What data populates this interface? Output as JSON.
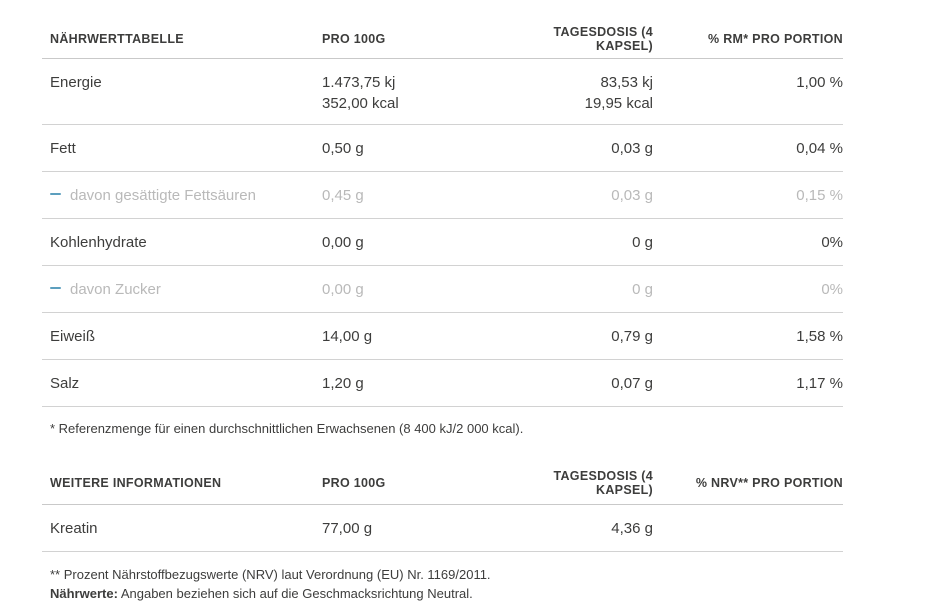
{
  "colors": {
    "text_dark": "#3d3d3c",
    "text_muted": "#b9b9b9",
    "dash_accent": "#5c9fbe",
    "divider": "#d2d2d2"
  },
  "nutrition_table": {
    "headers": {
      "col1": "NÄHRWERTTABELLE",
      "col2": "PRO 100G",
      "col3": "TAGESDOSIS (4 KAPSEL)",
      "col4": "% RM* PRO PORTION"
    },
    "rows": [
      {
        "label": "Energie",
        "per_100g": [
          "1.473,75 kj",
          "352,00 kcal"
        ],
        "daily_dose": [
          "83,53 kj",
          "19,95 kcal"
        ],
        "percent": "1,00 %"
      },
      {
        "label": "Fett",
        "per_100g": "0,50 g",
        "daily_dose": "0,03 g",
        "percent": "0,04 %"
      },
      {
        "label": "davon gesättigte Fettsäuren",
        "per_100g": "0,45 g",
        "daily_dose": "0,03 g",
        "percent": "0,15 %"
      },
      {
        "label": "Kohlenhydrate",
        "per_100g": "0,00 g",
        "daily_dose": "0 g",
        "percent": "0%"
      },
      {
        "label": "davon Zucker",
        "per_100g": "0,00 g",
        "daily_dose": "0 g",
        "percent": "0%"
      },
      {
        "label": "Eiweiß",
        "per_100g": "14,00 g",
        "daily_dose": "0,79 g",
        "percent": "1,58 %"
      },
      {
        "label": "Salz",
        "per_100g": "1,20 g",
        "daily_dose": "0,07 g",
        "percent": "1,17 %"
      }
    ],
    "footnote": "* Referenzmenge für einen durchschnittlichen Erwachsenen (8 400 kJ/2 000 kcal)."
  },
  "additional_table": {
    "headers": {
      "col1": "WEITERE INFORMATIONEN",
      "col2": "PRO 100G",
      "col3": "TAGESDOSIS (4 KAPSEL)",
      "col4": "% NRV** PRO PORTION"
    },
    "rows": [
      {
        "label": "Kreatin",
        "per_100g": "77,00 g",
        "daily_dose": "4,36 g",
        "percent": ""
      }
    ]
  },
  "footnotes": {
    "nrv": "** Prozent Nährstoffbezugswerte (NRV) laut Verordnung (EU) Nr. 1169/2011.",
    "nutrition_label": "Nährwerte:",
    "nutrition_text": "Angaben beziehen sich auf die Geschmacksrichtung Neutral."
  }
}
